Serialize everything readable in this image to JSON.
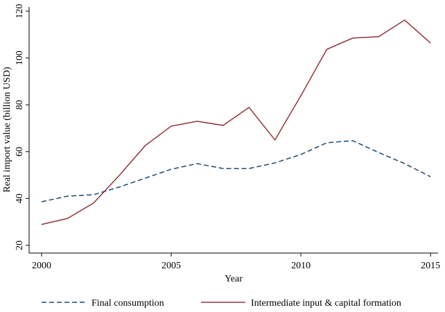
{
  "chart_data": {
    "type": "line",
    "x_label": "Year",
    "y_label": "Real import value (billion USD)",
    "x": [
      2000,
      2001,
      2002,
      2003,
      2004,
      2005,
      2006,
      2007,
      2008,
      2009,
      2010,
      2011,
      2012,
      2013,
      2014,
      2015
    ],
    "series": [
      {
        "name": "Final consumption",
        "color": "#1a476f",
        "dash": true,
        "values": [
          38.6,
          41.0,
          41.6,
          44.9,
          48.7,
          52.5,
          54.9,
          52.8,
          52.8,
          55.2,
          58.8,
          63.8,
          64.7,
          59.6,
          54.9,
          49.3
        ]
      },
      {
        "name": "Intermediate input & capital formation",
        "color": "#90353b",
        "dash": false,
        "values": [
          28.9,
          31.5,
          38.0,
          49.9,
          62.6,
          70.9,
          73.0,
          71.2,
          78.9,
          65.0,
          83.9,
          103.7,
          108.5,
          109.1,
          116.2,
          106.4
        ]
      }
    ],
    "xlim": [
      1999.52,
      2015.29
    ],
    "xticks": [
      2000,
      2005,
      2010,
      2015
    ],
    "ylim": [
      16.7,
      121.8
    ],
    "yticks": [
      20,
      40,
      60,
      80,
      100,
      120
    ],
    "grid": false,
    "legend": "bottom"
  }
}
